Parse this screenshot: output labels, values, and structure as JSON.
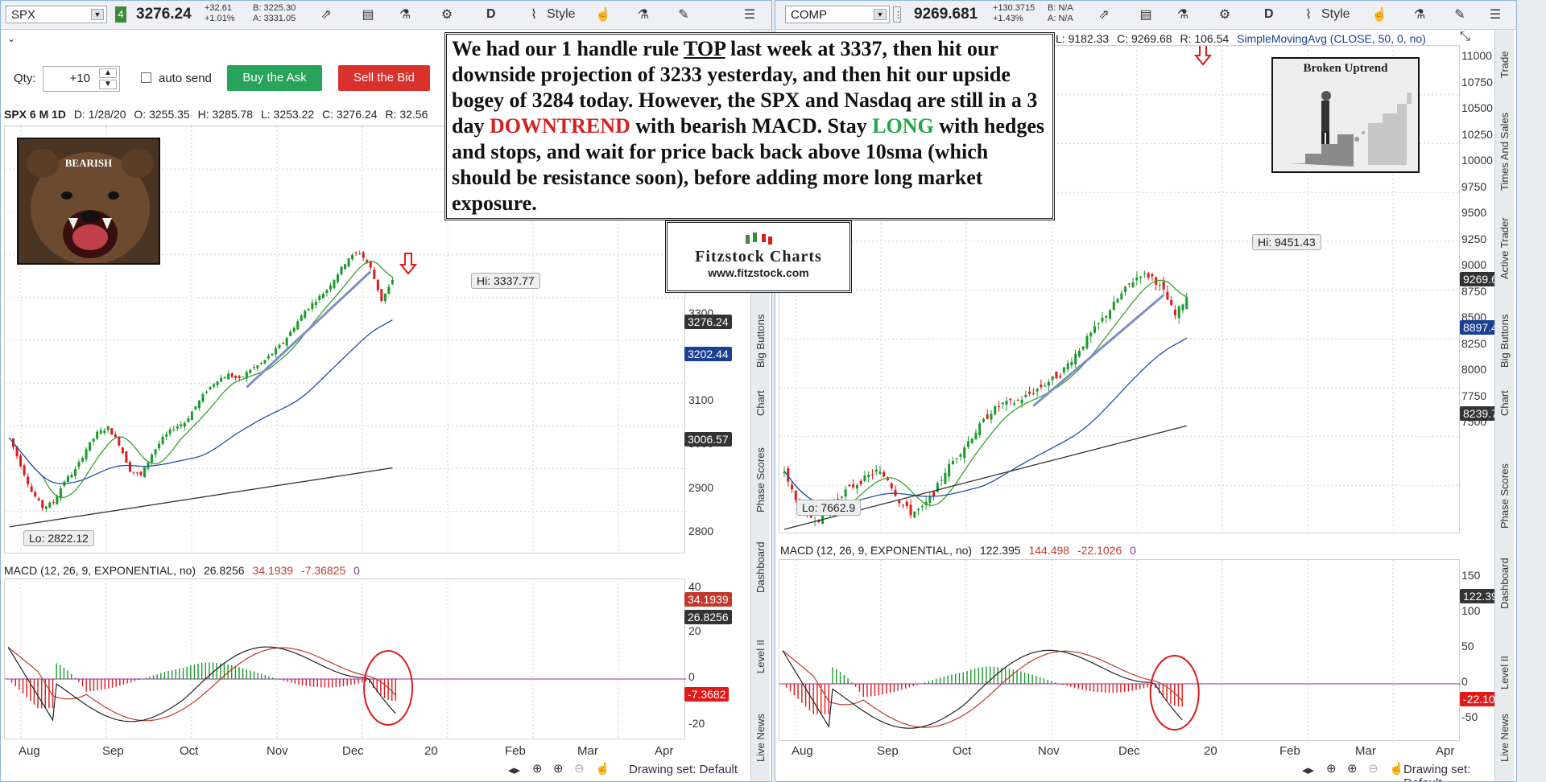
{
  "left": {
    "symbol": "SPX",
    "badge": "4",
    "price": "3276.24",
    "chg_abs": "+32.61",
    "chg_pct": "+1.01%",
    "bid": "B: 3225.30",
    "ask": "A: 3331.05",
    "toolbar": {
      "d": "D",
      "style": "Style"
    },
    "qty_label": "Qty:",
    "qty_value": "+10",
    "auto_send": "auto send",
    "buy": "Buy the Ask",
    "sell": "Sell the Bid",
    "info": {
      "title": "SPX 6 M 1D",
      "d": "D: 1/28/20",
      "o": "O: 3255.35",
      "h": "H: 3285.78",
      "l": "L: 3253.22",
      "c": "C: 3276.24",
      "r": "R: 32.56"
    },
    "bear_label": "BEARISH",
    "price_ticks": [
      "3300",
      "3200",
      "3100",
      "3000",
      "2900",
      "2800"
    ],
    "hi": "Hi: 3337.77",
    "lo": "Lo: 2822.12",
    "tags": {
      "last": "3276.24",
      "sma50": "3202.44",
      "sma200": "3006.57"
    },
    "macd_label": "MACD (12, 26, 9, EXPONENTIAL, no)",
    "macd_v": "26.8256",
    "macd_avg": "34.1939",
    "macd_diff": "-7.36825",
    "macd_zero": "0",
    "macd_ticks": [
      "40",
      "20",
      "0",
      "-20"
    ],
    "macd_tags": {
      "avg": "34.1939",
      "val": "26.8256",
      "diff": "-7.3682"
    },
    "months": [
      "Aug",
      "Sep",
      "Oct",
      "Nov",
      "Dec",
      "20",
      "Feb",
      "Mar",
      "Apr"
    ],
    "drawing_set": "Drawing set: Default",
    "side_tabs": [
      "Big Buttons",
      "Chart",
      "Phase Scores",
      "Dashboard",
      "Level II",
      "Live News"
    ]
  },
  "right": {
    "symbol": "COMP",
    "price": "9269.681",
    "chg_abs": "+130.3715",
    "chg_pct": "+1.43%",
    "bid": "B: N/A",
    "ask": "A: N/A",
    "toolbar": {
      "d": "D",
      "style": "Style"
    },
    "info": {
      "l": "L: 9182.33",
      "c": "C: 9269.68",
      "r": "R: 106.54",
      "sma": "SimpleMovingAvg (CLOSE, 50, 0, no)"
    },
    "broken_label": "Broken Uptrend",
    "price_ticks": [
      "11000",
      "10750",
      "10500",
      "10250",
      "10000",
      "9750",
      "9500",
      "9250",
      "9000",
      "8750",
      "8500",
      "8250",
      "8000",
      "7750",
      "7500"
    ],
    "hi": "Hi: 9451.43",
    "lo": "Lo: 7662.9",
    "tags": {
      "last": "9269.68",
      "sma50": "8897.41",
      "sma200": "8239.74"
    },
    "macd_label": "MACD (12, 26, 9, EXPONENTIAL, no)",
    "macd_v": "122.395",
    "macd_avg": "144.498",
    "macd_diff": "-22.1026",
    "macd_zero": "0",
    "macd_ticks": [
      "150",
      "100",
      "50",
      "0",
      "-50"
    ],
    "macd_tags": {
      "val": "122.395",
      "diff": "-22.103"
    },
    "months": [
      "Aug",
      "Sep",
      "Oct",
      "Nov",
      "Dec",
      "20",
      "Feb",
      "Mar",
      "Apr"
    ],
    "drawing_set": "Drawing set: Default",
    "side_tabs": [
      "Trade",
      "Times And Sales",
      "Active Trader",
      "Big Buttons",
      "Chart",
      "Phase Scores",
      "Dashboard",
      "Level II",
      "Live News"
    ]
  },
  "note": {
    "p1": "We had our 1 handle rule ",
    "top": "TOP",
    "p2": " last week at 3337, then hit our downside projection of 3233 yesterday, and then hit our upside bogey of 3284 today.   However, the SPX and Nasdaq are still in a 3 day ",
    "down": "DOWNTREND",
    "p3": " with bearish MACD.   Stay ",
    "long": "LONG",
    "p4": " with hedges and stops, and wait for price back back above 10sma (which should be resistance soon), before adding more long market exposure."
  },
  "logo": {
    "name": "Fitzstock Charts",
    "url": "www.fitzstock.com"
  },
  "colors": {
    "up": "#1a9a2a",
    "down": "#e01919",
    "sma10": "#3aa12e",
    "sma50": "#2050a8",
    "sma200": "#333333",
    "trend": "#7f8fc7",
    "macd_line": "#222222",
    "macd_avg": "#c0392b",
    "zero": "#b04ac0",
    "accent_buy": "#28a35a",
    "accent_sell": "#d9312b"
  },
  "chart_data": [
    {
      "type": "candlestick",
      "title": "SPX 6 M 1D",
      "x_range": [
        "Aug",
        "Apr"
      ],
      "ylim": [
        2780,
        3340
      ],
      "annotations": [
        "Hi: 3337.77",
        "Lo: 2822.12"
      ],
      "series": [
        {
          "name": "close",
          "values": [
            2980,
            2930,
            2880,
            2850,
            2860,
            2900,
            2920,
            2960,
            2990,
            3000,
            2970,
            2920,
            2910,
            2950,
            2980,
            3000,
            3010,
            3040,
            3070,
            3090,
            3100,
            3090,
            3110,
            3120,
            3140,
            3160,
            3190,
            3220,
            3240,
            3260,
            3290,
            3320,
            3330,
            3300,
            3240,
            3276
          ]
        }
      ]
    },
    {
      "type": "candlestick",
      "title": "COMP",
      "x_range": [
        "Aug",
        "Apr"
      ],
      "ylim": [
        7500,
        11000
      ],
      "annotations": [
        "Hi: 9451.43",
        "Lo: 7662.9"
      ],
      "series": [
        {
          "name": "close",
          "values": [
            8100,
            7900,
            7800,
            7780,
            7850,
            7950,
            8000,
            8050,
            8100,
            8050,
            7900,
            7820,
            7850,
            7950,
            8100,
            8200,
            8300,
            8400,
            8500,
            8550,
            8560,
            8600,
            8650,
            8700,
            8750,
            8850,
            8950,
            9050,
            9150,
            9250,
            9350,
            9420,
            9400,
            9300,
            9140,
            9270
          ]
        }
      ]
    }
  ]
}
